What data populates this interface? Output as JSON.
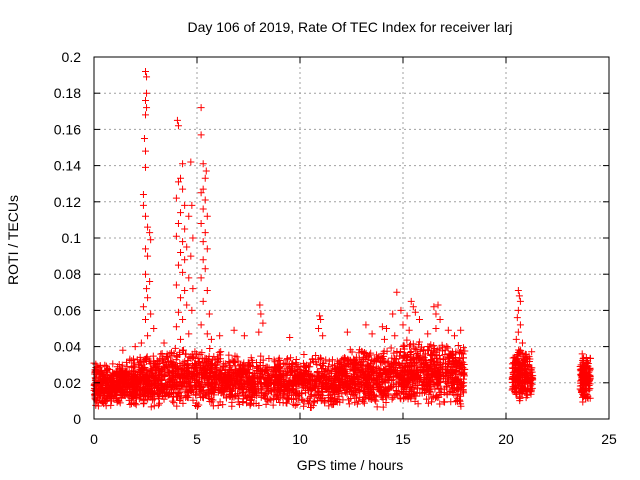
{
  "chart_data": {
    "type": "scatter",
    "title": "Day 106 of 2019, Rate Of TEC Index for receiver larj",
    "xlabel": "GPS time / hours",
    "ylabel": "ROTI / TECUs",
    "xlim": [
      0,
      25
    ],
    "ylim": [
      0,
      0.2
    ],
    "xticks": [
      0,
      5,
      10,
      15,
      20,
      25
    ],
    "yticks": [
      0,
      0.02,
      0.04,
      0.06,
      0.08,
      0.1,
      0.12,
      0.14,
      0.16,
      0.18,
      0.2
    ],
    "grid": true,
    "marker": "+",
    "color": "#ff0000",
    "clusters": [
      {
        "x_range": [
          0.0,
          1.2
        ],
        "y_range": [
          0.006,
          0.032
        ],
        "count": 260
      },
      {
        "x_range": [
          1.2,
          2.2
        ],
        "y_range": [
          0.006,
          0.034
        ],
        "count": 220
      },
      {
        "x_range": [
          2.2,
          3.2
        ],
        "y_range": [
          0.006,
          0.036
        ],
        "count": 220
      },
      {
        "x_range": [
          3.2,
          6.2
        ],
        "y_range": [
          0.006,
          0.04
        ],
        "count": 520
      },
      {
        "x_range": [
          6.2,
          8.5
        ],
        "y_range": [
          0.006,
          0.036
        ],
        "count": 380
      },
      {
        "x_range": [
          8.5,
          12.0
        ],
        "y_range": [
          0.006,
          0.036
        ],
        "count": 560
      },
      {
        "x_range": [
          12.0,
          15.0
        ],
        "y_range": [
          0.006,
          0.04
        ],
        "count": 520
      },
      {
        "x_range": [
          15.0,
          18.0
        ],
        "y_range": [
          0.006,
          0.044
        ],
        "count": 560
      },
      {
        "x_range": [
          20.3,
          21.3
        ],
        "y_range": [
          0.008,
          0.04
        ],
        "count": 240
      },
      {
        "x_range": [
          23.6,
          24.1
        ],
        "y_range": [
          0.008,
          0.036
        ],
        "count": 140
      }
    ],
    "highlights": [
      {
        "x": 2.5,
        "y": 0.192
      },
      {
        "x": 2.55,
        "y": 0.189
      },
      {
        "x": 2.55,
        "y": 0.18
      },
      {
        "x": 2.5,
        "y": 0.176
      },
      {
        "x": 2.55,
        "y": 0.172
      },
      {
        "x": 2.5,
        "y": 0.168
      },
      {
        "x": 2.45,
        "y": 0.155
      },
      {
        "x": 2.5,
        "y": 0.148
      },
      {
        "x": 2.5,
        "y": 0.139
      },
      {
        "x": 2.4,
        "y": 0.124
      },
      {
        "x": 2.4,
        "y": 0.118
      },
      {
        "x": 2.5,
        "y": 0.112
      },
      {
        "x": 2.6,
        "y": 0.106
      },
      {
        "x": 2.7,
        "y": 0.103
      },
      {
        "x": 2.75,
        "y": 0.099
      },
      {
        "x": 2.5,
        "y": 0.094
      },
      {
        "x": 2.6,
        "y": 0.09
      },
      {
        "x": 2.5,
        "y": 0.08
      },
      {
        "x": 2.7,
        "y": 0.076
      },
      {
        "x": 2.55,
        "y": 0.072
      },
      {
        "x": 2.6,
        "y": 0.067
      },
      {
        "x": 2.4,
        "y": 0.062
      },
      {
        "x": 2.75,
        "y": 0.058
      },
      {
        "x": 2.5,
        "y": 0.055
      },
      {
        "x": 2.9,
        "y": 0.05
      },
      {
        "x": 2.6,
        "y": 0.046
      },
      {
        "x": 2.3,
        "y": 0.042
      },
      {
        "x": 4.05,
        "y": 0.165
      },
      {
        "x": 4.1,
        "y": 0.162
      },
      {
        "x": 4.3,
        "y": 0.141
      },
      {
        "x": 4.2,
        "y": 0.133
      },
      {
        "x": 4.1,
        "y": 0.131
      },
      {
        "x": 4.3,
        "y": 0.127
      },
      {
        "x": 4.0,
        "y": 0.122
      },
      {
        "x": 4.4,
        "y": 0.118
      },
      {
        "x": 4.2,
        "y": 0.114
      },
      {
        "x": 4.6,
        "y": 0.112
      },
      {
        "x": 4.1,
        "y": 0.108
      },
      {
        "x": 4.4,
        "y": 0.105
      },
      {
        "x": 4.0,
        "y": 0.101
      },
      {
        "x": 4.3,
        "y": 0.098
      },
      {
        "x": 4.5,
        "y": 0.095
      },
      {
        "x": 4.2,
        "y": 0.092
      },
      {
        "x": 4.4,
        "y": 0.088
      },
      {
        "x": 4.1,
        "y": 0.085
      },
      {
        "x": 4.3,
        "y": 0.081
      },
      {
        "x": 4.6,
        "y": 0.078
      },
      {
        "x": 4.0,
        "y": 0.074
      },
      {
        "x": 4.4,
        "y": 0.071
      },
      {
        "x": 4.2,
        "y": 0.067
      },
      {
        "x": 4.5,
        "y": 0.063
      },
      {
        "x": 4.1,
        "y": 0.059
      },
      {
        "x": 4.3,
        "y": 0.055
      },
      {
        "x": 4.0,
        "y": 0.051
      },
      {
        "x": 4.6,
        "y": 0.047
      },
      {
        "x": 4.2,
        "y": 0.044
      },
      {
        "x": 4.7,
        "y": 0.142
      },
      {
        "x": 4.75,
        "y": 0.118
      },
      {
        "x": 4.8,
        "y": 0.1
      },
      {
        "x": 4.7,
        "y": 0.09
      },
      {
        "x": 4.8,
        "y": 0.072
      },
      {
        "x": 4.75,
        "y": 0.06
      },
      {
        "x": 5.2,
        "y": 0.172
      },
      {
        "x": 5.2,
        "y": 0.157
      },
      {
        "x": 5.3,
        "y": 0.141
      },
      {
        "x": 5.45,
        "y": 0.137
      },
      {
        "x": 5.4,
        "y": 0.133
      },
      {
        "x": 5.3,
        "y": 0.127
      },
      {
        "x": 5.2,
        "y": 0.125
      },
      {
        "x": 5.4,
        "y": 0.121
      },
      {
        "x": 5.3,
        "y": 0.116
      },
      {
        "x": 5.5,
        "y": 0.112
      },
      {
        "x": 5.2,
        "y": 0.108
      },
      {
        "x": 5.4,
        "y": 0.103
      },
      {
        "x": 5.3,
        "y": 0.098
      },
      {
        "x": 5.5,
        "y": 0.094
      },
      {
        "x": 5.3,
        "y": 0.088
      },
      {
        "x": 5.4,
        "y": 0.083
      },
      {
        "x": 5.2,
        "y": 0.078
      },
      {
        "x": 5.5,
        "y": 0.071
      },
      {
        "x": 5.3,
        "y": 0.065
      },
      {
        "x": 5.6,
        "y": 0.058
      },
      {
        "x": 5.2,
        "y": 0.052
      },
      {
        "x": 5.5,
        "y": 0.047
      },
      {
        "x": 5.7,
        "y": 0.044
      },
      {
        "x": 2.0,
        "y": 0.04
      },
      {
        "x": 1.4,
        "y": 0.038
      },
      {
        "x": 3.4,
        "y": 0.042
      },
      {
        "x": 6.1,
        "y": 0.046
      },
      {
        "x": 6.8,
        "y": 0.049
      },
      {
        "x": 7.3,
        "y": 0.046
      },
      {
        "x": 8.05,
        "y": 0.063
      },
      {
        "x": 8.1,
        "y": 0.058
      },
      {
        "x": 8.2,
        "y": 0.053
      },
      {
        "x": 8.0,
        "y": 0.048
      },
      {
        "x": 9.5,
        "y": 0.045
      },
      {
        "x": 10.95,
        "y": 0.057
      },
      {
        "x": 11.0,
        "y": 0.055
      },
      {
        "x": 10.9,
        "y": 0.05
      },
      {
        "x": 11.1,
        "y": 0.046
      },
      {
        "x": 12.3,
        "y": 0.048
      },
      {
        "x": 13.2,
        "y": 0.052
      },
      {
        "x": 13.5,
        "y": 0.047
      },
      {
        "x": 14.0,
        "y": 0.051
      },
      {
        "x": 14.1,
        "y": 0.044
      },
      {
        "x": 14.2,
        "y": 0.05
      },
      {
        "x": 14.6,
        "y": 0.046
      },
      {
        "x": 14.5,
        "y": 0.058
      },
      {
        "x": 14.7,
        "y": 0.07
      },
      {
        "x": 14.9,
        "y": 0.06
      },
      {
        "x": 15.0,
        "y": 0.052
      },
      {
        "x": 15.2,
        "y": 0.057
      },
      {
        "x": 15.4,
        "y": 0.065
      },
      {
        "x": 15.5,
        "y": 0.062
      },
      {
        "x": 15.6,
        "y": 0.059
      },
      {
        "x": 15.8,
        "y": 0.055
      },
      {
        "x": 15.3,
        "y": 0.049
      },
      {
        "x": 16.2,
        "y": 0.047
      },
      {
        "x": 16.5,
        "y": 0.062
      },
      {
        "x": 16.6,
        "y": 0.058
      },
      {
        "x": 16.7,
        "y": 0.063
      },
      {
        "x": 16.8,
        "y": 0.055
      },
      {
        "x": 16.6,
        "y": 0.05
      },
      {
        "x": 17.2,
        "y": 0.049
      },
      {
        "x": 17.8,
        "y": 0.049
      },
      {
        "x": 17.5,
        "y": 0.046
      },
      {
        "x": 20.6,
        "y": 0.071
      },
      {
        "x": 20.65,
        "y": 0.068
      },
      {
        "x": 20.7,
        "y": 0.065
      },
      {
        "x": 20.6,
        "y": 0.06
      },
      {
        "x": 20.55,
        "y": 0.056
      },
      {
        "x": 20.7,
        "y": 0.052
      },
      {
        "x": 20.6,
        "y": 0.048
      },
      {
        "x": 20.5,
        "y": 0.044
      },
      {
        "x": 20.8,
        "y": 0.042
      },
      {
        "x": 23.7,
        "y": 0.036
      },
      {
        "x": 23.9,
        "y": 0.034
      }
    ]
  }
}
